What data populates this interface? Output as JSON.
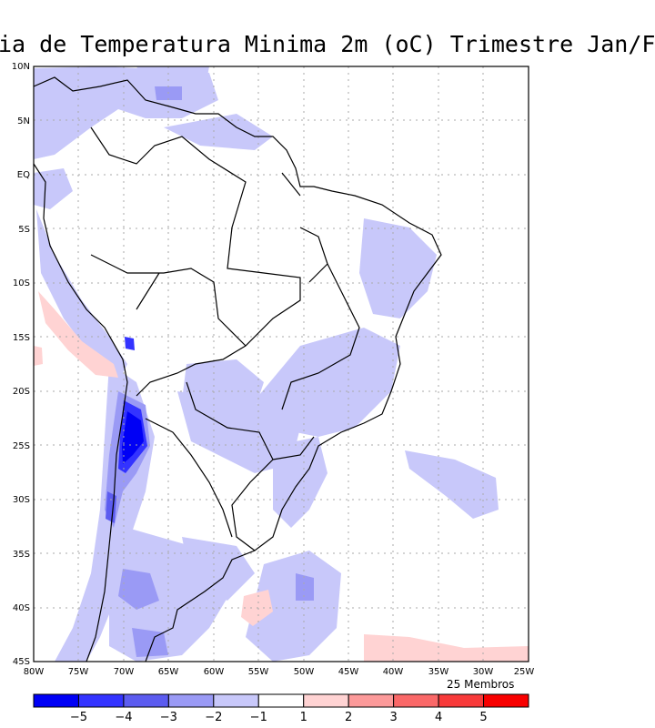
{
  "title": "ia de Temperatura Minima 2m (oC) Trimestre Jan/F",
  "y_labels": [
    "10N",
    "5N",
    "EQ",
    "5S",
    "10S",
    "15S",
    "20S",
    "25S",
    "30S",
    "35S",
    "40S",
    "45S"
  ],
  "x_labels": [
    "80W",
    "75W",
    "70W",
    "65W",
    "60W",
    "55W",
    "50W",
    "45W",
    "40W",
    "35W",
    "30W",
    "25W"
  ],
  "members_label": "25 Membros",
  "colorbar": {
    "colors": [
      "#0000f5",
      "#3333ff",
      "#5c5cf0",
      "#9a9af5",
      "#c8c8fa",
      "#ffffff",
      "#ffd3d3",
      "#fc9a9a",
      "#fa6868",
      "#f83a3a",
      "#f80000"
    ],
    "tick_labels": [
      "−5",
      "−4",
      "−3",
      "−2",
      "−1",
      "1",
      "2",
      "3",
      "4",
      "5"
    ]
  }
}
